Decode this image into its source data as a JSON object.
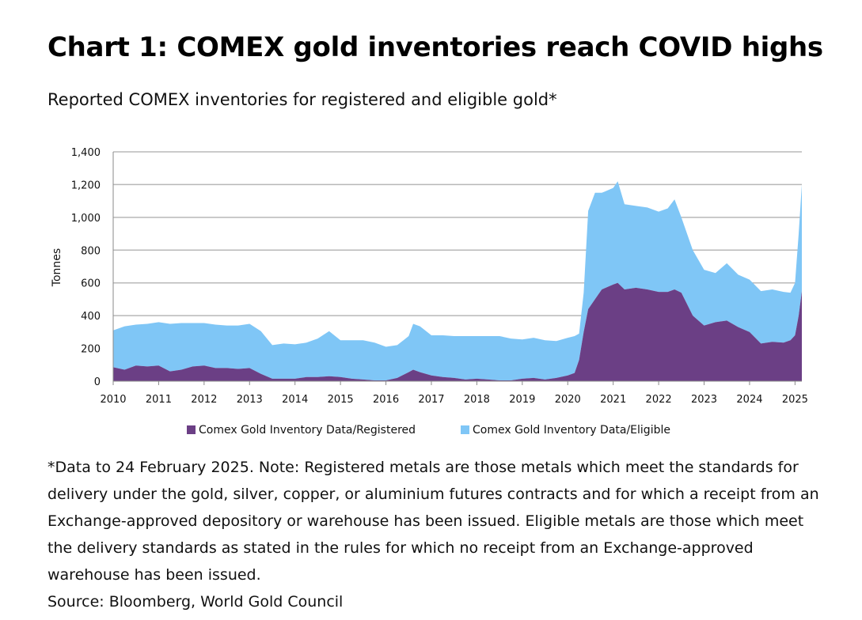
{
  "header": {
    "title": "Chart 1: COMEX gold inventories reach COVID highs",
    "subtitle": "Reported COMEX inventories for registered and eligible gold*"
  },
  "chart_data": {
    "type": "area",
    "stacked": true,
    "title": "Chart 1: COMEX gold inventories reach COVID highs",
    "subtitle": "Reported COMEX inventories for registered and eligible gold*",
    "xlabel": "",
    "ylabel": "Tonnes",
    "xlim": [
      2010,
      2025.15
    ],
    "ylim": [
      0,
      1400
    ],
    "yticks": [
      0,
      200,
      400,
      600,
      800,
      1000,
      1200,
      1400
    ],
    "ytick_labels": [
      "0",
      "200",
      "400",
      "600",
      "800",
      "1,000",
      "1,200",
      "1,400"
    ],
    "xticks": [
      2010,
      2011,
      2012,
      2013,
      2014,
      2015,
      2016,
      2017,
      2018,
      2019,
      2020,
      2021,
      2022,
      2023,
      2024,
      2025
    ],
    "xtick_labels": [
      "2010",
      "2011",
      "2012",
      "2013",
      "2014",
      "2015",
      "2016",
      "2017",
      "2018",
      "2019",
      "2020",
      "2021",
      "2022",
      "2023",
      "2024",
      "2025"
    ],
    "grid": true,
    "legend_position": "bottom",
    "colors": {
      "registered": "#6b3f85",
      "eligible": "#7fc6f6",
      "grid": "#b8b8b8"
    },
    "x": [
      2010.0,
      2010.25,
      2010.5,
      2010.75,
      2011.0,
      2011.25,
      2011.5,
      2011.75,
      2012.0,
      2012.25,
      2012.5,
      2012.75,
      2013.0,
      2013.25,
      2013.5,
      2013.75,
      2014.0,
      2014.25,
      2014.5,
      2014.75,
      2015.0,
      2015.25,
      2015.5,
      2015.75,
      2016.0,
      2016.25,
      2016.5,
      2016.6,
      2016.75,
      2017.0,
      2017.25,
      2017.5,
      2017.75,
      2018.0,
      2018.25,
      2018.5,
      2018.75,
      2019.0,
      2019.25,
      2019.5,
      2019.75,
      2020.0,
      2020.15,
      2020.25,
      2020.35,
      2020.45,
      2020.6,
      2020.75,
      2021.0,
      2021.1,
      2021.25,
      2021.5,
      2021.75,
      2022.0,
      2022.2,
      2022.35,
      2022.5,
      2022.75,
      2023.0,
      2023.25,
      2023.5,
      2023.75,
      2024.0,
      2024.25,
      2024.5,
      2024.75,
      2024.9,
      2025.0,
      2025.08,
      2025.15
    ],
    "series": [
      {
        "name": "Comex Gold Inventory Data/Registered",
        "values": [
          85,
          70,
          95,
          90,
          95,
          60,
          70,
          90,
          95,
          80,
          80,
          75,
          80,
          45,
          15,
          15,
          15,
          25,
          25,
          30,
          25,
          15,
          10,
          5,
          5,
          20,
          55,
          70,
          55,
          35,
          25,
          20,
          10,
          15,
          10,
          5,
          5,
          15,
          20,
          10,
          20,
          35,
          50,
          130,
          300,
          440,
          500,
          560,
          590,
          600,
          560,
          570,
          560,
          545,
          545,
          560,
          540,
          400,
          340,
          360,
          370,
          330,
          300,
          230,
          240,
          235,
          250,
          280,
          400,
          550
        ]
      },
      {
        "name": "Comex Gold Inventory Data/Eligible",
        "values": [
          225,
          265,
          250,
          260,
          265,
          290,
          285,
          265,
          260,
          265,
          260,
          265,
          270,
          260,
          205,
          215,
          210,
          210,
          235,
          275,
          225,
          235,
          240,
          230,
          205,
          200,
          220,
          280,
          280,
          245,
          255,
          255,
          265,
          260,
          265,
          270,
          255,
          240,
          245,
          240,
          225,
          230,
          225,
          160,
          240,
          600,
          650,
          590,
          590,
          620,
          520,
          500,
          500,
          490,
          510,
          550,
          460,
          400,
          340,
          300,
          350,
          320,
          320,
          320,
          320,
          310,
          290,
          320,
          500,
          650
        ]
      }
    ]
  },
  "legend": {
    "registered": "Comex Gold Inventory Data/Registered",
    "eligible": "Comex Gold Inventory Data/Eligible"
  },
  "footer": {
    "note": "*Data to 24 February 2025. Note: Registered metals are those metals which meet the standards for delivery under the gold, silver, copper, or aluminium futures contracts and for which a receipt from an Exchange-approved depository or warehouse has been issued. Eligible metals are those which meet the delivery standards as stated in the rules for which no receipt from an Exchange-approved warehouse has been issued.",
    "source": "Source: Bloomberg, World Gold Council"
  }
}
